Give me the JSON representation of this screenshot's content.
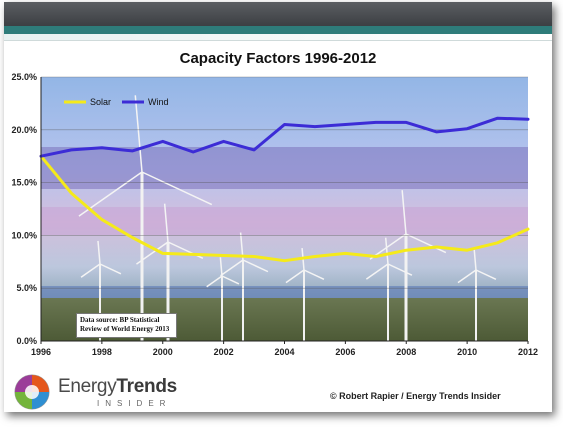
{
  "chart_data": {
    "type": "line",
    "title": "Capacity Factors 1996-2012",
    "x": [
      1996,
      1997,
      1998,
      1999,
      2000,
      2001,
      2002,
      2003,
      2004,
      2005,
      2006,
      2007,
      2008,
      2009,
      2010,
      2011,
      2012
    ],
    "x_ticks": [
      "1996",
      "1998",
      "2000",
      "2002",
      "2004",
      "2006",
      "2008",
      "2010",
      "2012"
    ],
    "y_ticks": [
      "0.0%",
      "5.0%",
      "10.0%",
      "15.0%",
      "20.0%",
      "25.0%"
    ],
    "ylim": [
      0,
      25
    ],
    "xlim": [
      1996,
      2012
    ],
    "grid": "horizontal",
    "legend_position": "top-left",
    "series": [
      {
        "name": "Solar",
        "color": "#f5ea1a",
        "values": [
          17.5,
          14.0,
          11.5,
          9.8,
          8.3,
          8.2,
          8.1,
          8.0,
          7.6,
          8.0,
          8.3,
          8.0,
          8.6,
          8.9,
          8.6,
          9.3,
          10.6
        ]
      },
      {
        "name": "Wind",
        "color": "#3c2cd6",
        "values": [
          17.5,
          18.1,
          18.3,
          18.0,
          18.9,
          17.9,
          18.9,
          18.1,
          20.5,
          20.3,
          20.5,
          20.7,
          20.7,
          19.8,
          20.1,
          21.1,
          21.0
        ]
      }
    ]
  },
  "annotations": {
    "source_line1": "Data source: BP Statistical",
    "source_line2": "Review of World Energy 2013"
  },
  "footer": {
    "brand_regular": "Energy",
    "brand_bold": "Trends",
    "brand_sub": "INSIDER",
    "credit": "© Robert Rapier / Energy Trends Insider"
  }
}
